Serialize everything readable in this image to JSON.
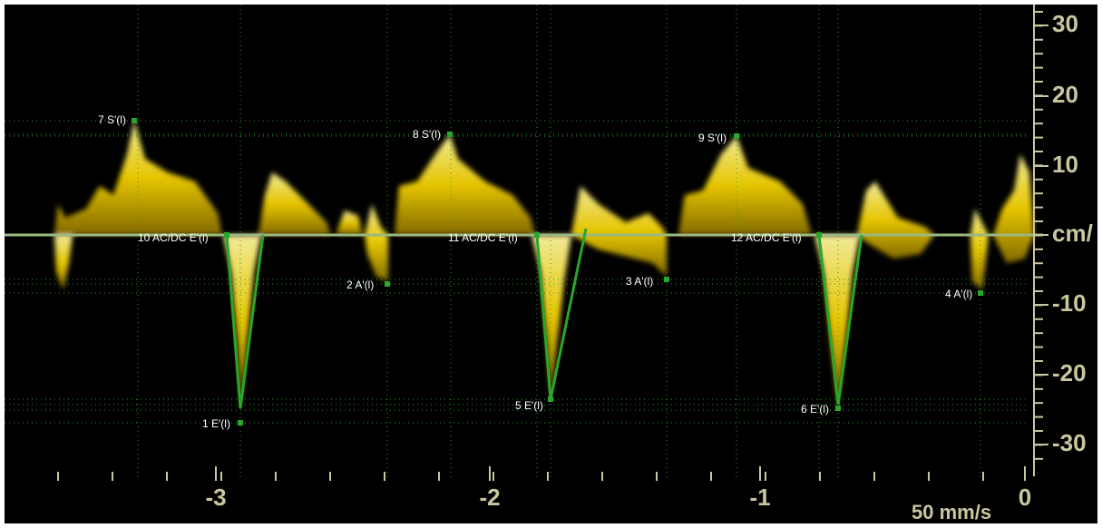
{
  "y_axis": {
    "labels": [
      "30",
      "20",
      "10",
      "cm/",
      "-10",
      "-20",
      "-30"
    ]
  },
  "x_axis": {
    "labels": [
      "-3",
      "-2",
      "-1",
      "0"
    ]
  },
  "sweep_speed": "50 mm/s",
  "annotations": [
    "7 S'(l)",
    "8 S'(l)",
    "9 S'(l)",
    "10 AC/DC E'(l)",
    "11 AC/DC E'(l)",
    "12 AC/DC E'(l)",
    "2 A'(l)",
    "3 A'(l)",
    "4 A'(l)",
    "1 E'(l)",
    "5 E'(l)",
    "6 E'(l)"
  ]
}
